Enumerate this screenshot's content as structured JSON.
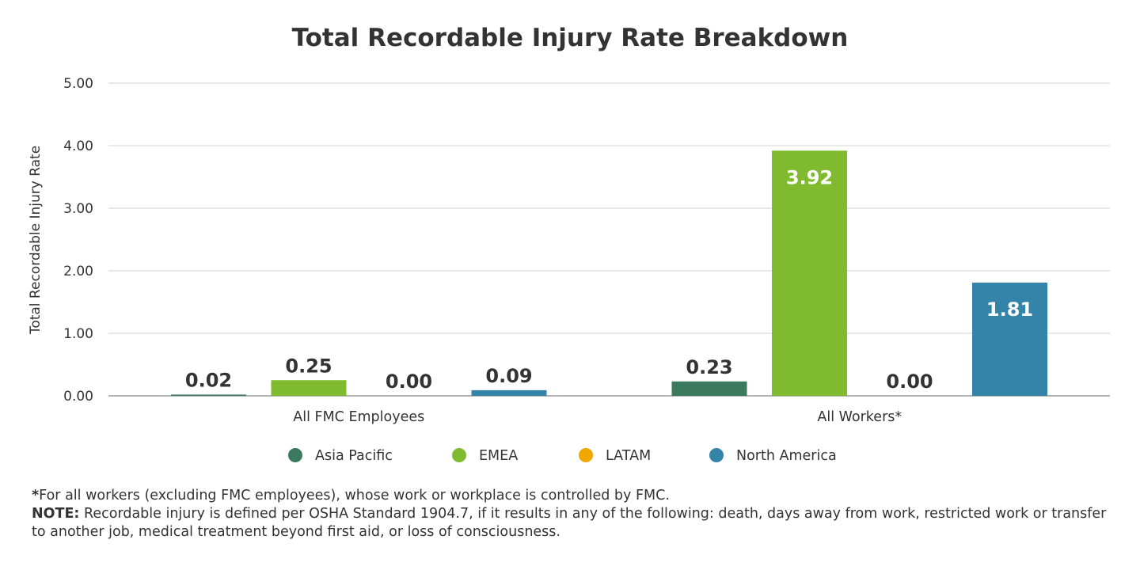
{
  "chart_data": {
    "type": "bar",
    "title": "Total Recordable Injury Rate Breakdown",
    "xlabel": "",
    "ylabel": "Total Recordable Injury Rate",
    "ylim": [
      0,
      5
    ],
    "yticks": [
      "0.00",
      "1.00",
      "2.00",
      "3.00",
      "4.00",
      "5.00"
    ],
    "grid": true,
    "legend_position": "bottom",
    "categories": [
      "All FMC Employees",
      "All Workers*"
    ],
    "series": [
      {
        "name": "Asia Pacific",
        "color": "#3b7a5f",
        "values": [
          0.02,
          0.23
        ],
        "labels": [
          "0.02",
          "0.23"
        ]
      },
      {
        "name": "EMEA",
        "color": "#80bb2f",
        "values": [
          0.25,
          3.92
        ],
        "labels": [
          "0.25",
          "3.92"
        ]
      },
      {
        "name": "LATAM",
        "color": "#f0a800",
        "values": [
          0.0,
          0.0
        ],
        "labels": [
          "0.00",
          "0.00"
        ]
      },
      {
        "name": "North America",
        "color": "#3384a8",
        "values": [
          0.09,
          1.81
        ],
        "labels": [
          "0.09",
          "1.81"
        ]
      }
    ]
  },
  "footnote": {
    "asterisk_marker": "*",
    "asterisk_text": "For all workers (excluding FMC employees), whose work or workplace is controlled by FMC.",
    "note_label": "NOTE:",
    "note_text": " Recordable injury is defined per OSHA Standard 1904.7, if it results in any of the following: death, days away from work, restricted work or transfer to another job, medical treatment beyond first aid, or loss of consciousness."
  }
}
